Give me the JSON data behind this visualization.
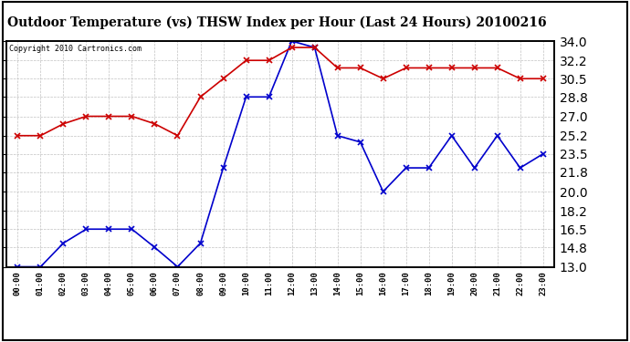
{
  "title": "Outdoor Temperature (vs) THSW Index per Hour (Last 24 Hours) 20100216",
  "copyright": "Copyright 2010 Cartronics.com",
  "hours": [
    0,
    1,
    2,
    3,
    4,
    5,
    6,
    7,
    8,
    9,
    10,
    11,
    12,
    13,
    14,
    15,
    16,
    17,
    18,
    19,
    20,
    21,
    22,
    23
  ],
  "blue_data": [
    13.0,
    13.0,
    15.2,
    16.5,
    16.5,
    16.5,
    14.8,
    13.0,
    15.2,
    22.2,
    28.8,
    28.8,
    34.0,
    33.4,
    25.2,
    24.6,
    20.0,
    22.2,
    22.2,
    25.2,
    22.2,
    25.2,
    22.2,
    23.5
  ],
  "red_data": [
    25.2,
    25.2,
    26.3,
    27.0,
    27.0,
    27.0,
    26.3,
    25.2,
    28.8,
    30.5,
    32.2,
    32.2,
    33.4,
    33.4,
    31.5,
    31.5,
    30.5,
    31.5,
    31.5,
    31.5,
    31.5,
    31.5,
    30.5,
    30.5
  ],
  "ylim": [
    13.0,
    34.0
  ],
  "ytick_vals": [
    13.0,
    14.8,
    16.5,
    18.2,
    20.0,
    21.8,
    23.5,
    25.2,
    27.0,
    28.8,
    30.5,
    32.2,
    34.0
  ],
  "ytick_labels": [
    "13.0",
    "14.8",
    "16.5",
    "18.2",
    "20.0",
    "21.8",
    "23.5",
    "25.2",
    "27.0",
    "28.8",
    "30.5",
    "32.2",
    "34.0"
  ],
  "blue_color": "#0000cc",
  "red_color": "#cc0000",
  "bg_color": "#ffffff",
  "grid_color": "#bbbbbb",
  "title_fontsize": 10,
  "copyright_fontsize": 6,
  "tick_fontsize": 7.5,
  "xtick_fontsize": 6.5
}
